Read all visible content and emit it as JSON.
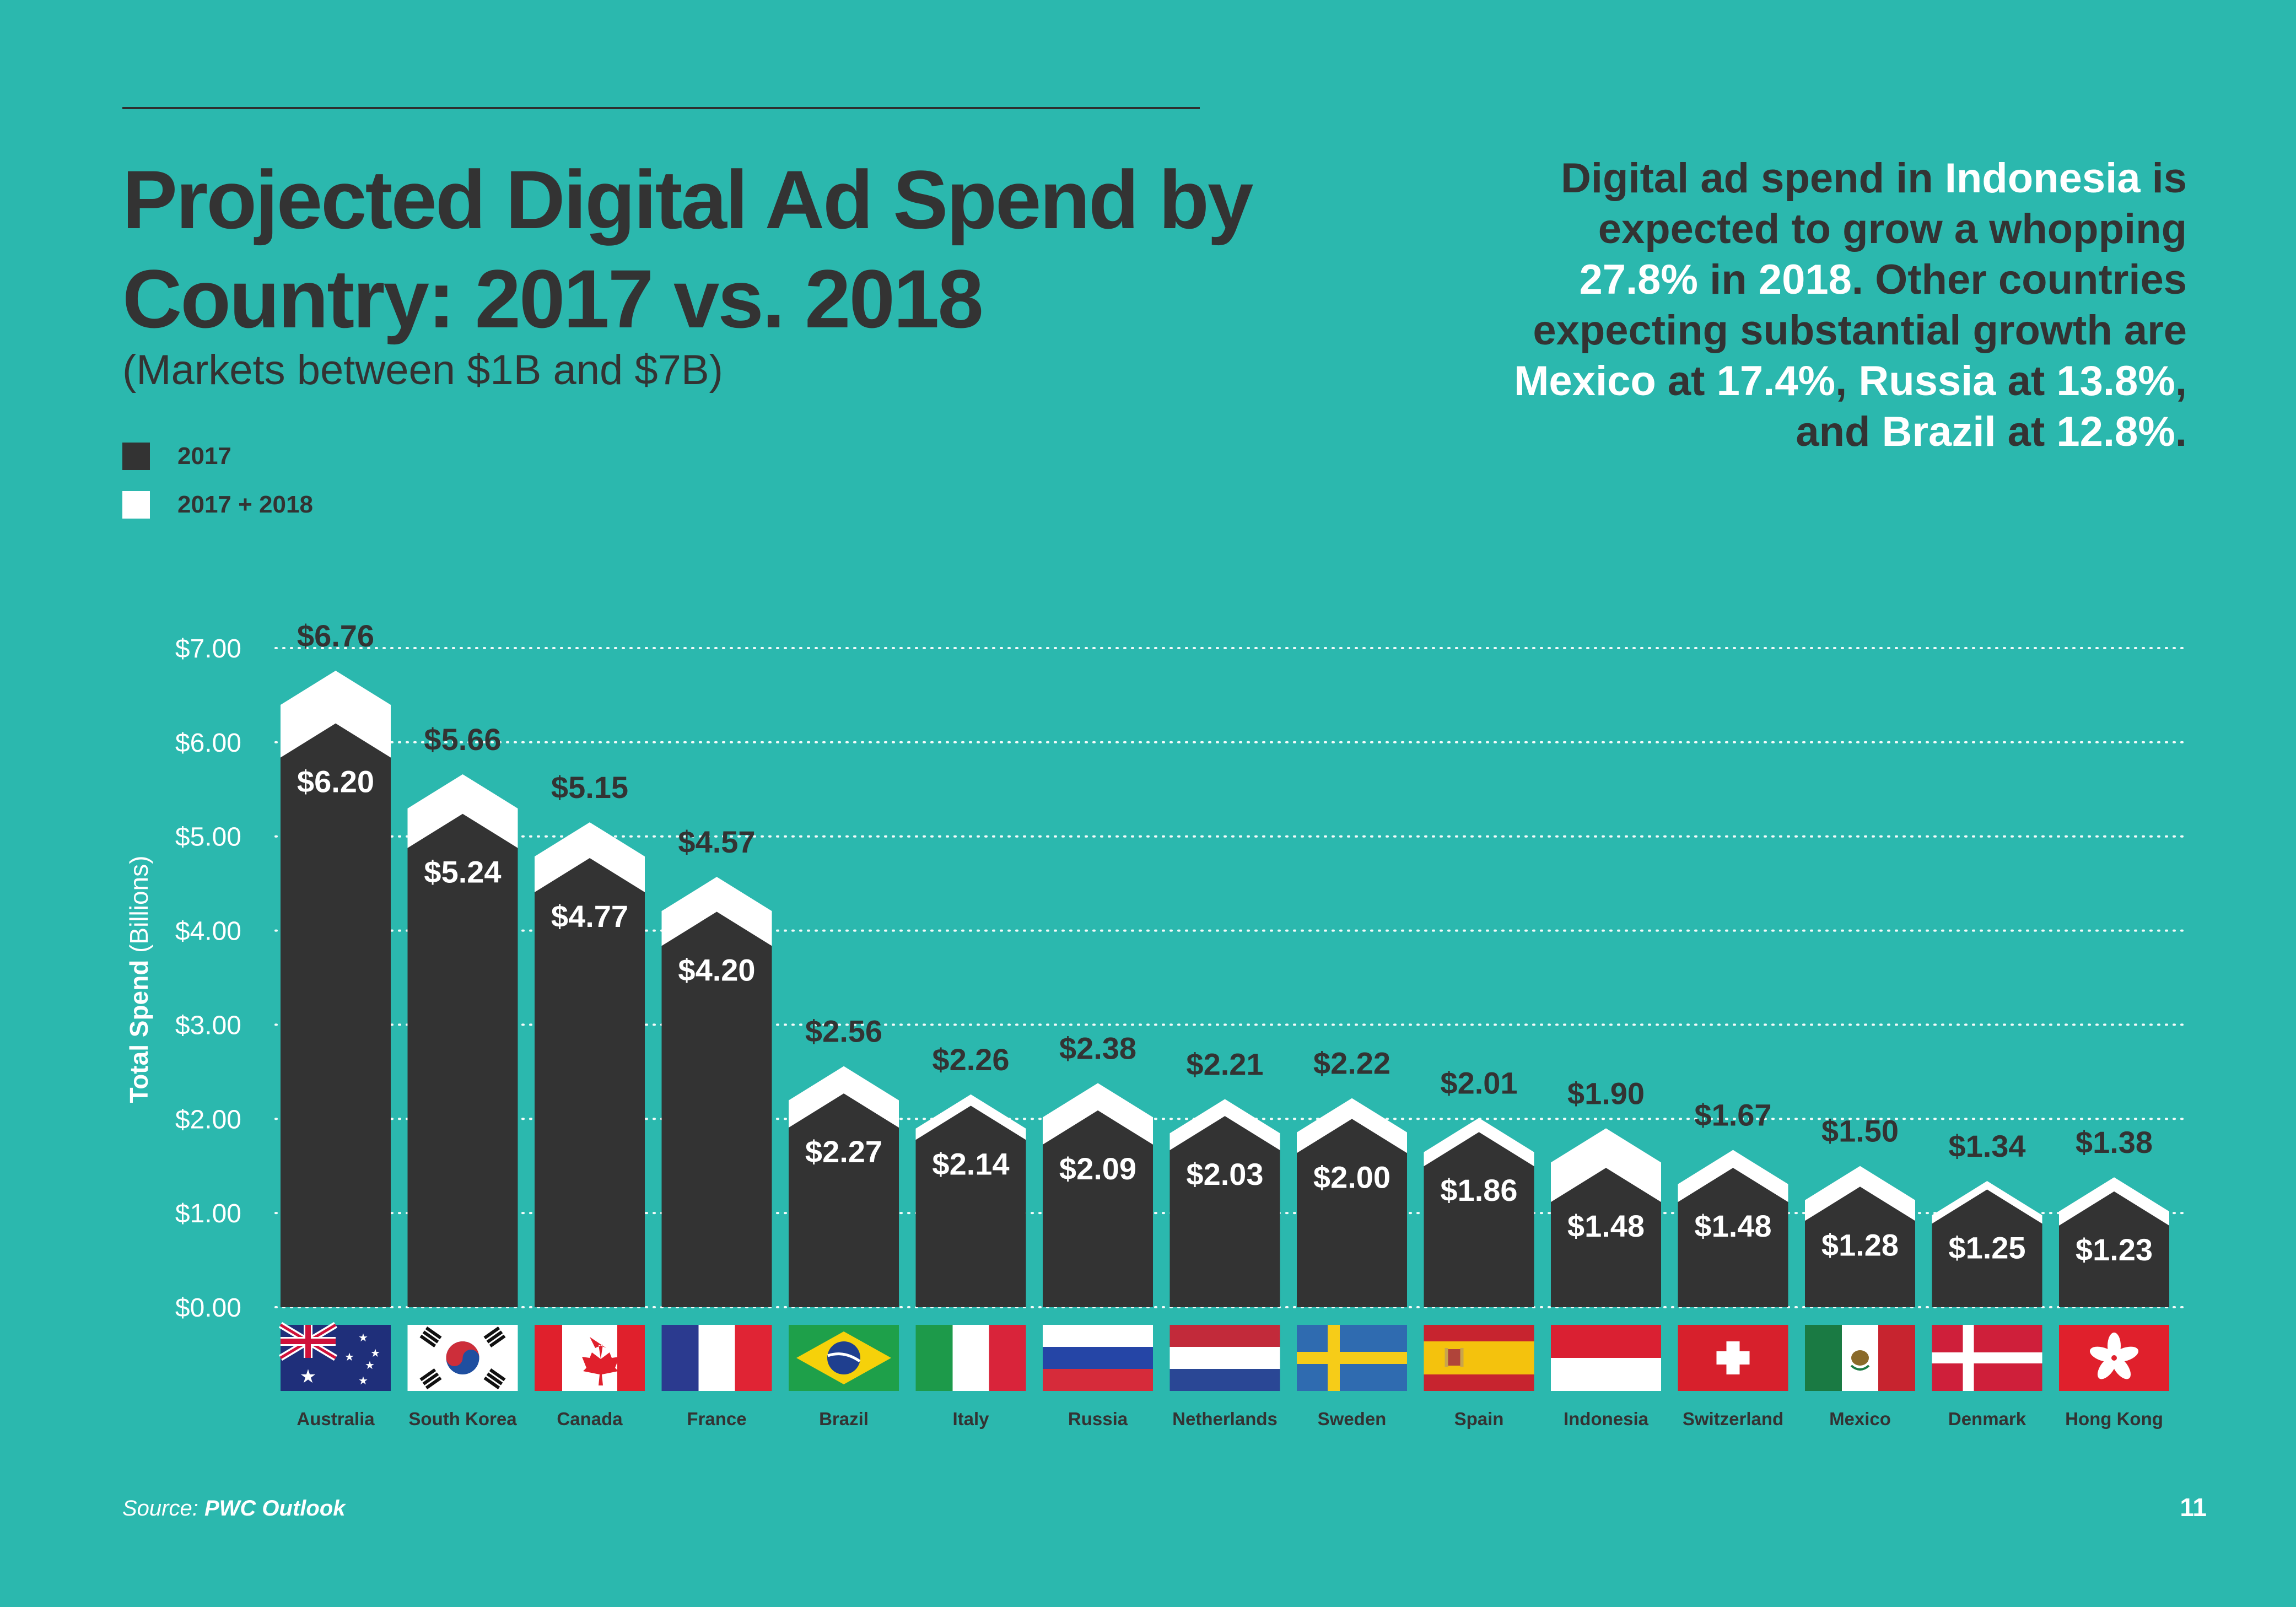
{
  "header": {
    "title": "Projected Digital Ad Spend by Country: 2017 vs. 2018",
    "subtitle": "(Markets between $1B and $7B)"
  },
  "blurb": {
    "parts": [
      {
        "text": "Digital ad spend in ",
        "highlight": false
      },
      {
        "text": "Indonesia",
        "highlight": true
      },
      {
        "text": " is expected to grow a whopping ",
        "highlight": false
      },
      {
        "text": "27.8%",
        "highlight": true
      },
      {
        "text": " in ",
        "highlight": false
      },
      {
        "text": "2018",
        "highlight": true
      },
      {
        "text": ". Other countries expecting substantial growth are ",
        "highlight": false
      },
      {
        "text": "Mexico",
        "highlight": true
      },
      {
        "text": " at ",
        "highlight": false
      },
      {
        "text": "17.4%",
        "highlight": true
      },
      {
        "text": ", ",
        "highlight": false
      },
      {
        "text": "Russia",
        "highlight": true
      },
      {
        "text": " at ",
        "highlight": false
      },
      {
        "text": "13.8%",
        "highlight": true
      },
      {
        "text": ", and ",
        "highlight": false
      },
      {
        "text": "Brazil",
        "highlight": true
      },
      {
        "text": " at ",
        "highlight": false
      },
      {
        "text": "12.8%",
        "highlight": true
      },
      {
        "text": ".",
        "highlight": false
      }
    ]
  },
  "legend": {
    "items": [
      {
        "label": "2017",
        "color": "#333333"
      },
      {
        "label": "2017 + 2018",
        "color": "#ffffff"
      }
    ]
  },
  "colors": {
    "background": "#2bb8ae",
    "bar_2017": "#333333",
    "bar_2018": "#ffffff",
    "text_dark": "#333333",
    "text_light": "#ffffff",
    "gridline": "#ffffff"
  },
  "chart_data": {
    "type": "bar",
    "ylabel_bold": "Total Spend",
    "ylabel_rest": " (Billions)",
    "ylim": [
      0,
      7
    ],
    "yticks": [
      "$0.00",
      "$1.00",
      "$2.00",
      "$3.00",
      "$4.00",
      "$5.00",
      "$6.00",
      "$7.00"
    ],
    "grid": true,
    "legend_position": "top-left",
    "categories": [
      "Australia",
      "South Korea",
      "Canada",
      "France",
      "Brazil",
      "Italy",
      "Russia",
      "Netherlands",
      "Sweden",
      "Spain",
      "Indonesia",
      "Switzerland",
      "Mexico",
      "Denmark",
      "Hong Kong"
    ],
    "series": [
      {
        "name": "2017",
        "values": [
          6.2,
          5.24,
          4.77,
          4.2,
          2.27,
          2.14,
          2.09,
          2.03,
          2.0,
          1.86,
          1.48,
          1.48,
          1.28,
          1.25,
          1.23
        ],
        "labels": [
          "$6.20",
          "$5.24",
          "$4.77",
          "$4.20",
          "$2.27",
          "$2.14",
          "$2.09",
          "$2.03",
          "$2.00",
          "$1.86",
          "$1.48",
          "$1.48",
          "$1.28",
          "$1.25",
          "$1.23"
        ]
      },
      {
        "name": "2017 + 2018",
        "values": [
          6.76,
          5.66,
          5.15,
          4.57,
          2.56,
          2.26,
          2.38,
          2.21,
          2.22,
          2.01,
          1.9,
          1.67,
          1.5,
          1.34,
          1.38
        ],
        "labels": [
          "$6.76",
          "$5.66",
          "$5.15",
          "$4.57",
          "$2.56",
          "$2.26",
          "$2.38",
          "$2.21",
          "$2.22",
          "$2.01",
          "$1.90",
          "$1.67",
          "$1.50",
          "$1.34",
          "$1.38"
        ]
      }
    ],
    "flags": [
      "australia-flag",
      "south-korea-flag",
      "canada-flag",
      "france-flag",
      "brazil-flag",
      "italy-flag",
      "russia-flag",
      "netherlands-flag",
      "sweden-flag",
      "spain-flag",
      "indonesia-flag",
      "switzerland-flag",
      "mexico-flag",
      "denmark-flag",
      "hong-kong-flag"
    ]
  },
  "footer": {
    "source_prefix": "Source: ",
    "source_name": "PWC Outlook",
    "page_number": "11"
  }
}
